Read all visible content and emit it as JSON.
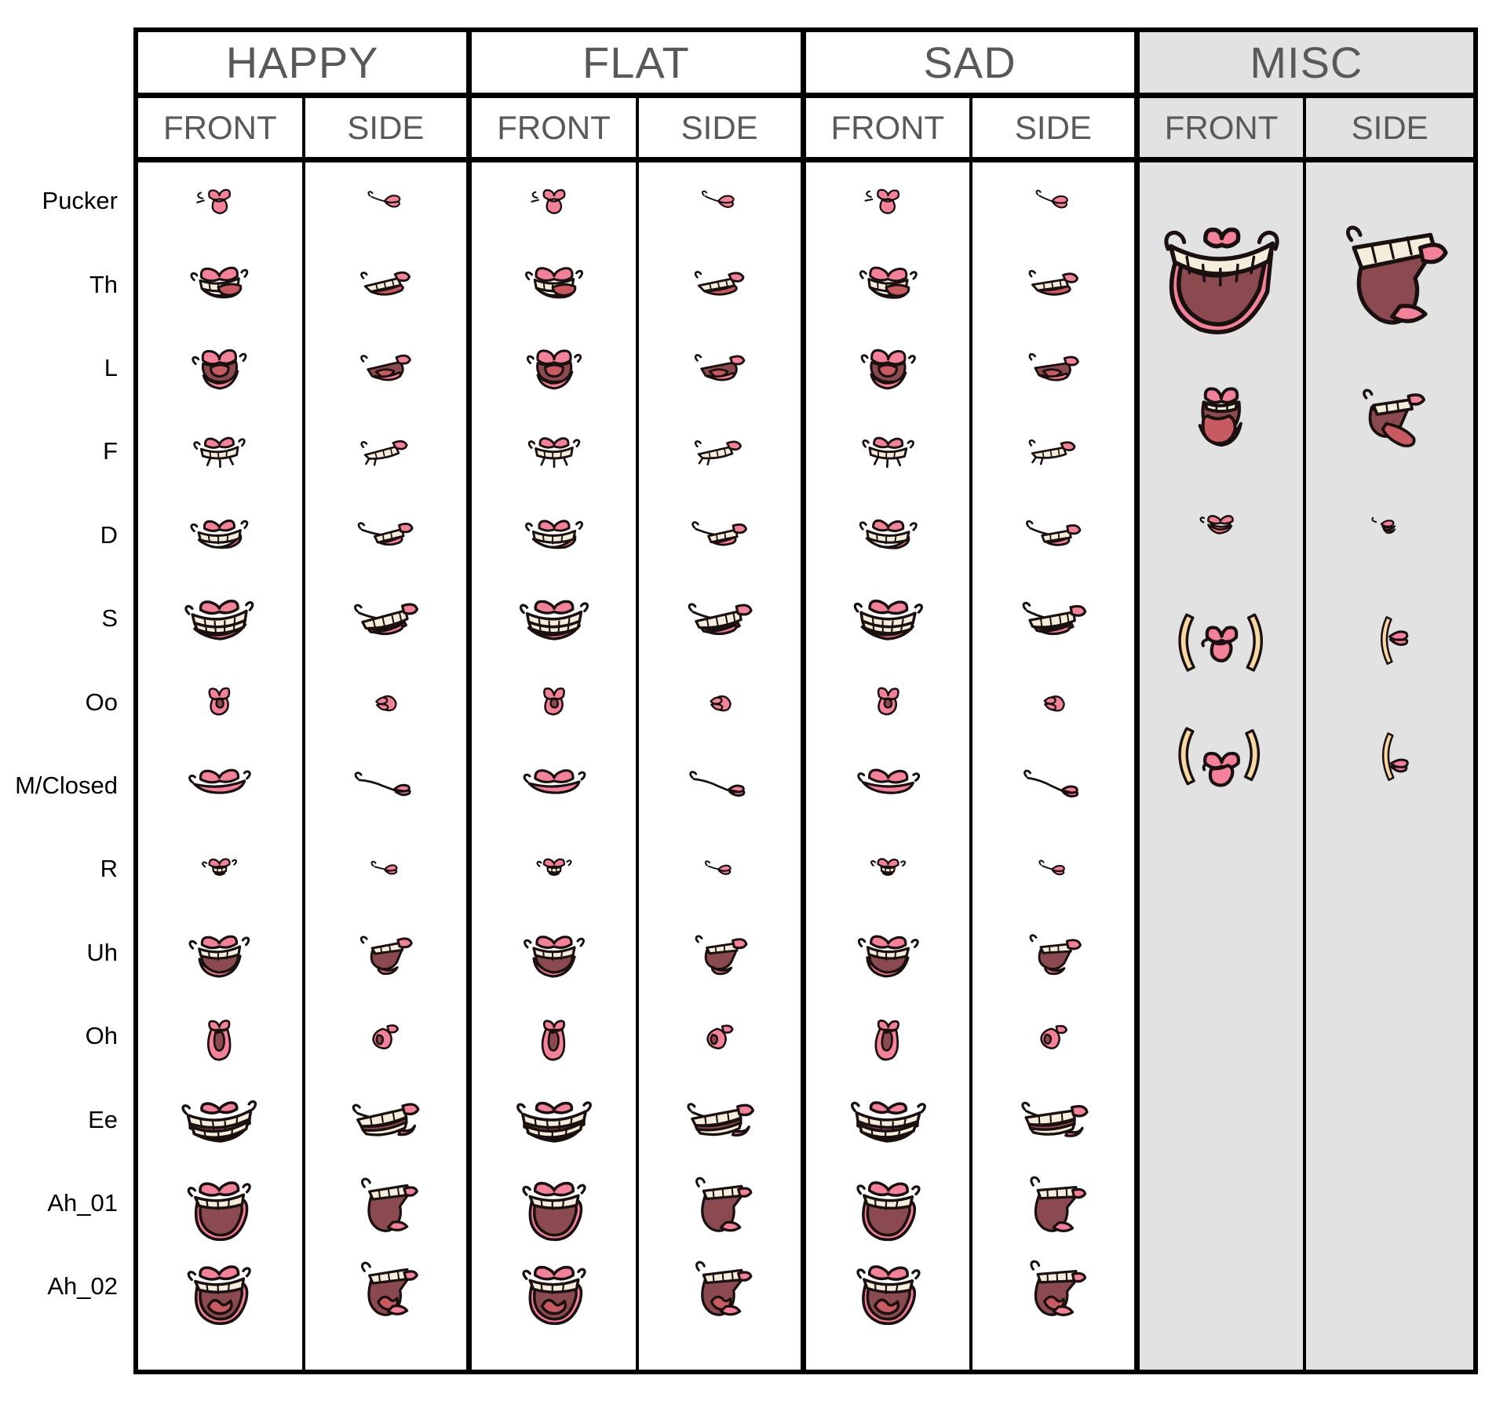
{
  "page": {
    "background": "#ffffff",
    "description": "Mouth shape lip-sync phoneme reference chart"
  },
  "colors": {
    "lip_pink": "#F2819A",
    "mouth_interior_maroon": "#8A4A4F",
    "tongue_red": "#C85A62",
    "teeth_cream": "#F4EDDB",
    "cheek_tan": "#F7D8A4",
    "outline": "#19100F",
    "grid_line": "#000000",
    "header_text": "#58595B",
    "row_label_text": "#000000",
    "misc_background": "#E2E2E2"
  },
  "header": {
    "groups": [
      {
        "label": "HAPPY",
        "views": [
          "FRONT",
          "SIDE"
        ],
        "highlighted": false
      },
      {
        "label": "FLAT",
        "views": [
          "FRONT",
          "SIDE"
        ],
        "highlighted": false
      },
      {
        "label": "SAD",
        "views": [
          "FRONT",
          "SIDE"
        ],
        "highlighted": false
      },
      {
        "label": "MISC",
        "views": [
          "FRONT",
          "SIDE"
        ],
        "highlighted": true
      }
    ]
  },
  "rows": [
    {
      "label": "Pucker",
      "key": "pucker",
      "front_icon": "pucker-front",
      "side_icon": "pucker-side"
    },
    {
      "label": "Th",
      "key": "th",
      "front_icon": "th-front",
      "side_icon": "th-side"
    },
    {
      "label": "L",
      "key": "l",
      "front_icon": "l-front",
      "side_icon": "l-side"
    },
    {
      "label": "F",
      "key": "f",
      "front_icon": "f-front",
      "side_icon": "f-side"
    },
    {
      "label": "D",
      "key": "d",
      "front_icon": "d-front",
      "side_icon": "d-side"
    },
    {
      "label": "S",
      "key": "s",
      "front_icon": "s-front",
      "side_icon": "s-side"
    },
    {
      "label": "Oo",
      "key": "oo",
      "front_icon": "oo-front",
      "side_icon": "oo-side"
    },
    {
      "label": "M/Closed",
      "key": "m",
      "front_icon": "m-closed-front",
      "side_icon": "m-closed-side"
    },
    {
      "label": "R",
      "key": "r",
      "front_icon": "r-front",
      "side_icon": "r-side"
    },
    {
      "label": "Uh",
      "key": "uh",
      "front_icon": "uh-front",
      "side_icon": "uh-side"
    },
    {
      "label": "Oh",
      "key": "oh",
      "front_icon": "oh-front",
      "side_icon": "oh-side"
    },
    {
      "label": "Ee",
      "key": "ee",
      "front_icon": "ee-front",
      "side_icon": "ee-side"
    },
    {
      "label": "Ah_01",
      "key": "ah1",
      "front_icon": "ah1-front",
      "side_icon": "ah1-side"
    },
    {
      "label": "Ah_02",
      "key": "ah2",
      "front_icon": "ah2-front",
      "side_icon": "ah2-side"
    }
  ],
  "misc_items": [
    {
      "name": "open-laugh",
      "front_icon": "open-laugh-front",
      "side_icon": "open-laugh-side"
    },
    {
      "name": "tongue-out",
      "front_icon": "tongue-out-front",
      "side_icon": "tongue-out-side"
    },
    {
      "name": "raspberry",
      "front_icon": "raspberry-front",
      "side_icon": "raspberry-side"
    },
    {
      "name": "kiss-cheeks-1",
      "front_icon": "kiss-cheeks-1-front",
      "side_icon": "kiss-cheeks-1-side"
    },
    {
      "name": "kiss-cheeks-2",
      "front_icon": "kiss-cheeks-2-front",
      "side_icon": "kiss-cheeks-2-side"
    }
  ]
}
